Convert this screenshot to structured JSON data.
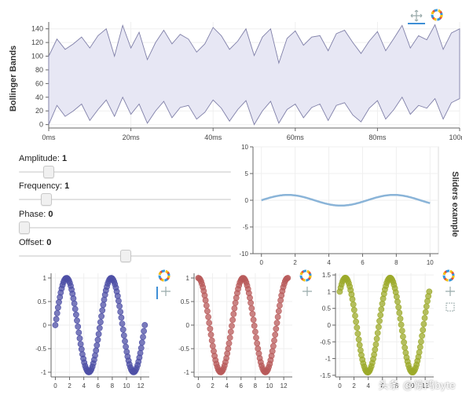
{
  "chart_data": [
    {
      "type": "area",
      "ylabel": "Bollinger Bands",
      "xlim": [
        0,
        100
      ],
      "ylim": [
        -5,
        150
      ],
      "x_ticks": [
        "0ms",
        "20ms",
        "40ms",
        "60ms",
        "80ms",
        "100ms"
      ],
      "y_ticks": [
        "0",
        "20",
        "40",
        "60",
        "80",
        "100",
        "120",
        "140"
      ],
      "x": [
        0,
        2,
        4,
        6,
        8,
        10,
        12,
        14,
        16,
        18,
        20,
        22,
        24,
        26,
        28,
        30,
        32,
        34,
        36,
        38,
        40,
        42,
        44,
        46,
        48,
        50,
        52,
        54,
        56,
        58,
        60,
        62,
        64,
        66,
        68,
        70,
        72,
        74,
        76,
        78,
        80,
        82,
        84,
        86,
        88,
        90,
        92,
        94,
        96,
        98,
        100
      ],
      "upper": [
        100,
        125,
        110,
        118,
        128,
        112,
        130,
        140,
        100,
        145,
        112,
        135,
        95,
        120,
        138,
        118,
        132,
        125,
        106,
        118,
        142,
        130,
        110,
        122,
        140,
        101,
        128,
        140,
        90,
        126,
        137,
        116,
        128,
        130,
        108,
        133,
        138,
        120,
        104,
        122,
        136,
        108,
        126,
        145,
        112,
        130,
        124,
        146,
        110,
        134,
        140
      ],
      "lower": [
        0,
        28,
        12,
        20,
        30,
        6,
        22,
        36,
        12,
        40,
        15,
        30,
        2,
        20,
        34,
        10,
        25,
        28,
        8,
        18,
        36,
        24,
        5,
        22,
        35,
        0,
        20,
        34,
        2,
        22,
        30,
        10,
        25,
        30,
        6,
        28,
        32,
        14,
        4,
        24,
        35,
        8,
        22,
        40,
        15,
        28,
        24,
        38,
        8,
        32,
        38
      ],
      "fill_color": "#e7e7f4",
      "line_color": "#7f7fa8"
    },
    {
      "type": "line",
      "title": "Sliders example",
      "xlim": [
        -0.5,
        10.5
      ],
      "ylim": [
        -10,
        10
      ],
      "x_ticks": [
        "0",
        "2",
        "4",
        "6",
        "8",
        "10"
      ],
      "y_ticks": [
        "10",
        "5",
        "0",
        "-5",
        "-10"
      ],
      "amplitude": 1,
      "frequency": 1,
      "phase": 0,
      "offset": 0,
      "x_range": [
        0,
        10
      ],
      "line_color": "#8ab4d8"
    },
    {
      "type": "scatter",
      "function": "sin",
      "xlim": [
        -0.6,
        13.2
      ],
      "ylim": [
        -1.1,
        1.1
      ],
      "x_range": [
        0,
        12.566
      ],
      "point_count": 100,
      "x_ticks": [
        "0",
        "2",
        "4",
        "6",
        "8",
        "10",
        "12"
      ],
      "y_ticks": [
        "1",
        "0.5",
        "0",
        "-0.5",
        "-1"
      ],
      "color": "#4d4fa6"
    },
    {
      "type": "scatter",
      "function": "cos",
      "xlim": [
        -0.6,
        13.2
      ],
      "ylim": [
        -1.1,
        1.1
      ],
      "x_range": [
        0,
        12.566
      ],
      "point_count": 100,
      "x_ticks": [
        "0",
        "2",
        "4",
        "6",
        "8",
        "10",
        "12"
      ],
      "y_ticks": [
        "1",
        "0.5",
        "0",
        "-0.5",
        "-1"
      ],
      "color": "#b85a5a"
    },
    {
      "type": "scatter",
      "function": "sin+cos",
      "xlim": [
        -0.6,
        13.2
      ],
      "ylim": [
        -1.55,
        1.55
      ],
      "x_range": [
        0,
        12.566
      ],
      "point_count": 100,
      "x_ticks": [
        "0",
        "2",
        "4",
        "6",
        "8",
        "10",
        "12"
      ],
      "y_ticks": [
        "1.5",
        "1",
        "0.5",
        "0",
        "-0.5",
        "-1",
        "-1.5"
      ],
      "color": "#9caa2a"
    }
  ],
  "sliders": [
    {
      "label": "Amplitude:",
      "value": "1",
      "fraction": 0.12
    },
    {
      "label": "Frequency:",
      "value": "1",
      "fraction": 0.11
    },
    {
      "label": "Phase:",
      "value": "0",
      "fraction": 0.0
    },
    {
      "label": "Offset:",
      "value": "0",
      "fraction": 0.5
    }
  ],
  "toolbar": {
    "pan_icon": "pan-icon",
    "logo_icon": "bokeh-logo-icon",
    "reset_icon": "reset-icon"
  },
  "watermark": "头条 @惊鸿byte"
}
